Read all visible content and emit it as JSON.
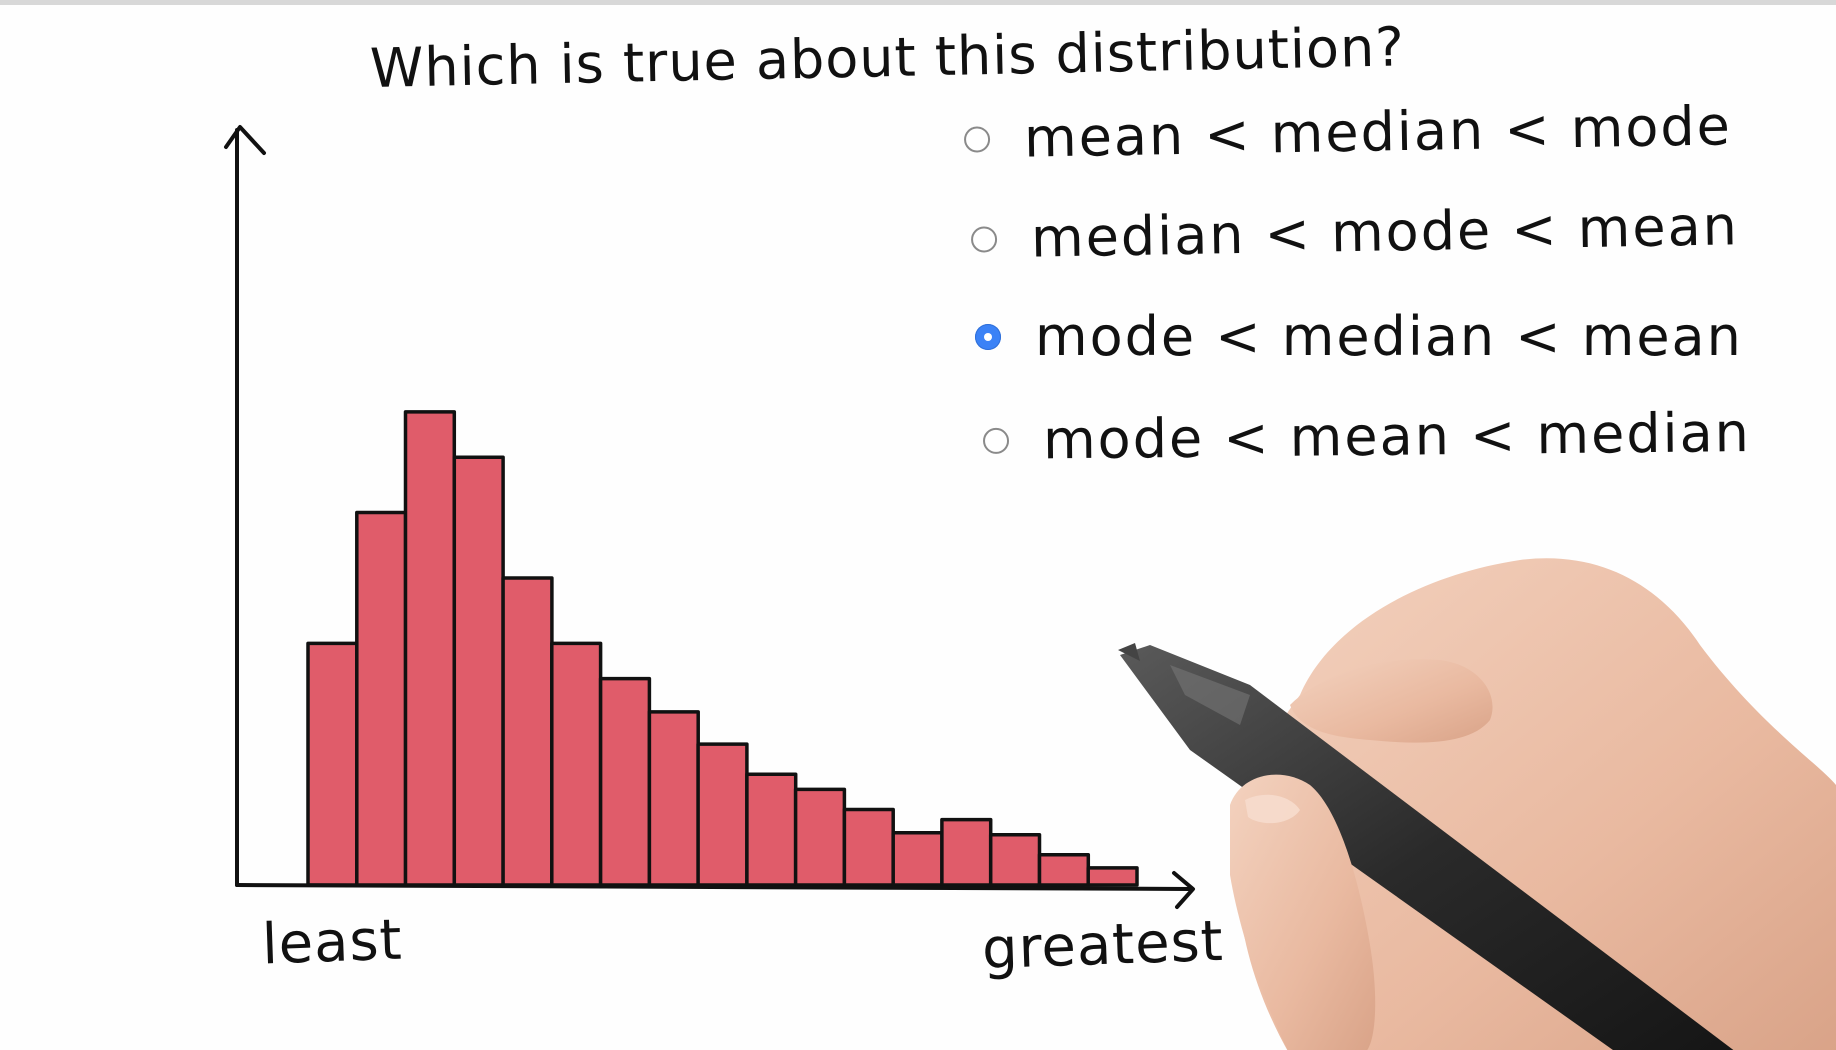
{
  "question": "Which is true about this distribution?",
  "options": [
    {
      "label": "mean < median < mode",
      "selected": false
    },
    {
      "label": "median < mode < mean",
      "selected": false
    },
    {
      "label": "mode < median < mean",
      "selected": true
    },
    {
      "label": "mode < mean < median",
      "selected": false
    }
  ],
  "chart_data": {
    "type": "bar",
    "xlabel_left": "least",
    "xlabel_right": "greatest",
    "values": [
      24,
      37,
      47,
      42.5,
      30.5,
      24,
      20.5,
      17.2,
      14,
      11,
      9.5,
      7.5,
      5.2,
      6.5,
      5,
      3,
      1.7
    ],
    "ylim": [
      0,
      75
    ],
    "bar_color": "#e05c6a",
    "grid": false
  },
  "colors": {
    "selected_radio": "#3b82f6",
    "ink": "#111111",
    "bar_fill": "#e05c6a"
  },
  "icons": {
    "hand": "hand-holding-pen"
  }
}
